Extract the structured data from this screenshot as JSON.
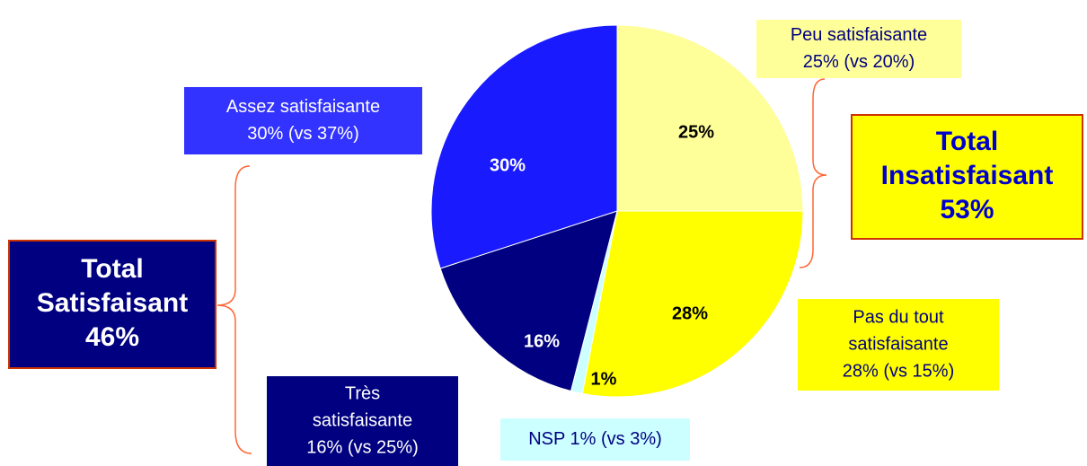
{
  "chart_data": {
    "type": "pie",
    "categories": [
      "Peu satisfaisante",
      "Pas du tout satisfaisante",
      "NSP",
      "Très satisfaisante",
      "Assez satisfaisante"
    ],
    "values": [
      25,
      28,
      1,
      16,
      30
    ],
    "value_labels": [
      "25%",
      "28%",
      "1%",
      "16%",
      "30%"
    ],
    "colors": [
      "#ffff99",
      "#ffff00",
      "#ccffff",
      "#000080",
      "#1a1aff"
    ],
    "callouts": [
      [
        "Peu satisfaisante",
        "25% (vs 20%)"
      ],
      [
        "Pas du tout",
        "satisfaisante",
        "28% (vs 15%)"
      ],
      [
        "NSP 1% (vs 3%)"
      ],
      [
        "Très",
        "satisfaisante",
        "16% (vs 25%)"
      ],
      [
        "Assez satisfaisante",
        "30% (vs 37%)"
      ]
    ],
    "totals": [
      [
        "Total",
        "Insatisfaisant",
        "53%"
      ],
      [
        "Total",
        "Satisfaisant",
        "46%"
      ]
    ]
  }
}
